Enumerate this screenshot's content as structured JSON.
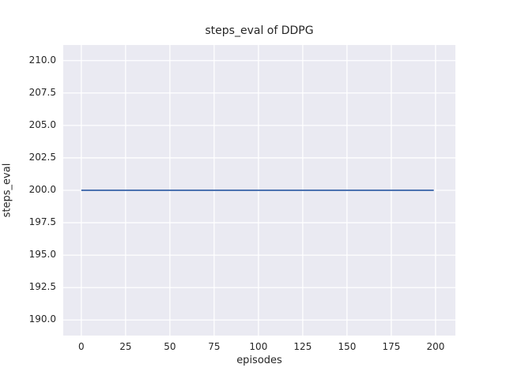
{
  "chart_data": {
    "type": "line",
    "title": "steps_eval of DDPG",
    "xlabel": "episodes",
    "ylabel": "steps_eval",
    "x_ticks": [
      0,
      25,
      50,
      75,
      100,
      125,
      150,
      175,
      200
    ],
    "x_tick_labels": [
      "0",
      "25",
      "50",
      "75",
      "100",
      "125",
      "150",
      "175",
      "200"
    ],
    "y_ticks": [
      190.0,
      192.5,
      195.0,
      197.5,
      200.0,
      202.5,
      205.0,
      207.5,
      210.0
    ],
    "y_tick_labels": [
      "190.0",
      "192.5",
      "195.0",
      "197.5",
      "200.0",
      "202.5",
      "205.0",
      "207.5",
      "210.0"
    ],
    "xlim": [
      -10.2,
      211.2
    ],
    "ylim": [
      188.8,
      211.2
    ],
    "grid": true,
    "legend": "none",
    "style": "seaborn-darkgrid",
    "series": [
      {
        "name": "steps_eval",
        "color": "#4c72b0",
        "x": [
          0,
          199
        ],
        "y": [
          200,
          200
        ],
        "description": "constant value 200 for every episode from 0 to 199"
      }
    ]
  },
  "colors": {
    "figure_background": "#ffffff",
    "axes_background": "#eaeaf2",
    "gridline": "#ffffff",
    "text": "#262626",
    "line": "#4c72b0"
  }
}
